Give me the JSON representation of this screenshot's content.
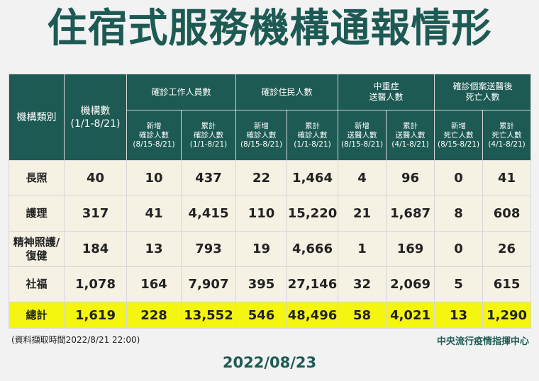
{
  "title": "住宿式服務機構通報情形",
  "headers": {
    "category": "機構類別",
    "count_main": "機構數",
    "count_range": "(1/1-8/21)",
    "group_staff": "確診工作人員數",
    "group_residents": "確診住民人數",
    "group_severe_1": "中重症",
    "group_severe_2": "送醫人數",
    "group_death_1": "確診個案送醫後",
    "group_death_2": "死亡人數",
    "sub": {
      "new_conf_1": "新增",
      "new_conf_2": "確診人數",
      "range_new": "(8/15-8/21)",
      "cum_conf_1": "累計",
      "cum_conf_2": "確診人數",
      "range_cum": "(1/1-8/21)",
      "new_hosp_1": "新增",
      "new_hosp_2": "送醫人數",
      "cum_hosp_1": "累計",
      "cum_hosp_2": "送醫人數",
      "range_cum_hosp": "(4/1-8/21)",
      "new_death_1": "新增",
      "new_death_2": "死亡人數",
      "cum_death_1": "累計",
      "cum_death_2": "死亡人數",
      "range_cum_death": "(4/1-8/21)"
    }
  },
  "rows": [
    {
      "cat": "長照",
      "values": [
        "40",
        "10",
        "437",
        "22",
        "1,464",
        "4",
        "96",
        "0",
        "41"
      ]
    },
    {
      "cat": "護理",
      "values": [
        "317",
        "41",
        "4,415",
        "110",
        "15,220",
        "21",
        "1,687",
        "8",
        "608"
      ]
    },
    {
      "cat": "精神照護/\n復健",
      "values": [
        "184",
        "13",
        "793",
        "19",
        "4,666",
        "1",
        "169",
        "0",
        "26"
      ]
    },
    {
      "cat": "社福",
      "values": [
        "1,078",
        "164",
        "7,907",
        "395",
        "27,146",
        "32",
        "2,069",
        "5",
        "615"
      ]
    }
  ],
  "total": {
    "cat": "總計",
    "values": [
      "1,619",
      "228",
      "13,552",
      "546",
      "48,496",
      "58",
      "4,021",
      "13",
      "1,290"
    ]
  },
  "footer": {
    "source_time": "(資料擷取時間2022/8/21 22:00)",
    "agency": "中央流行疫情指揮中心",
    "date": "2022/08/23"
  },
  "colors": {
    "header_bg": "#1d5a53",
    "body_bg": "#f5f2e4",
    "total_bg": "#f4f60f",
    "title": "#1e5a54"
  }
}
